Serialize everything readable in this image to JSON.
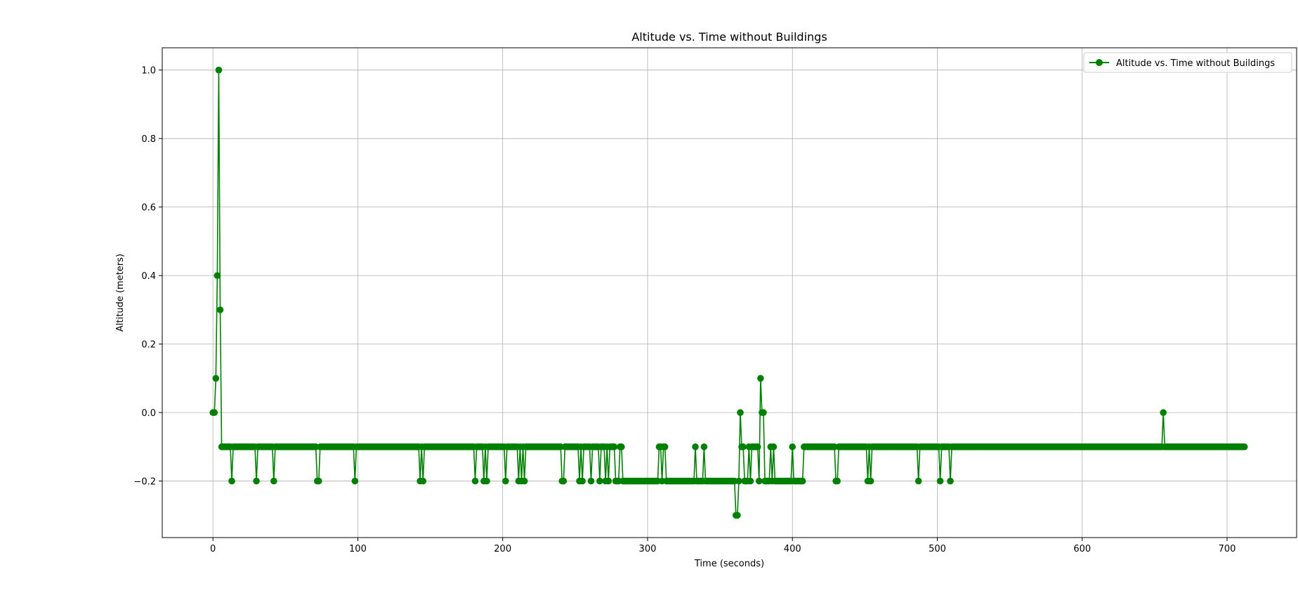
{
  "chart_data": {
    "type": "line",
    "title": "Altitude vs. Time without Buildings",
    "xlabel": "Time (seconds)",
    "ylabel": "Altitude (meters)",
    "xlim": [
      -35,
      748
    ],
    "ylim": [
      -0.365,
      1.065
    ],
    "xticks": [
      0,
      100,
      200,
      300,
      400,
      500,
      600,
      700
    ],
    "yticks": [
      -0.2,
      0.0,
      0.2,
      0.4,
      0.6,
      0.8,
      1.0
    ],
    "xtick_labels": [
      "0",
      "100",
      "200",
      "300",
      "400",
      "500",
      "600",
      "700"
    ],
    "ytick_labels": [
      "−0.2",
      "0.0",
      "0.2",
      "0.4",
      "0.6",
      "0.8",
      "1.0"
    ],
    "grid": true,
    "legend_position": "upper right",
    "series": [
      {
        "name": "Altitude vs. Time without Buildings",
        "color": "#008000",
        "marker": "circle",
        "x_start": 0,
        "x_step": 1,
        "overrides": [
          [
            0,
            0.0
          ],
          [
            1,
            0.0
          ],
          [
            2,
            0.1
          ],
          [
            3,
            0.4
          ],
          [
            4,
            1.0
          ],
          [
            5,
            0.3
          ],
          [
            13,
            -0.2
          ],
          [
            30,
            -0.2
          ],
          [
            42,
            -0.2
          ],
          [
            72,
            -0.2
          ],
          [
            73,
            -0.2
          ],
          [
            98,
            -0.2
          ],
          [
            143,
            -0.2
          ],
          [
            145,
            -0.2
          ],
          [
            181,
            -0.2
          ],
          [
            187,
            -0.2
          ],
          [
            189,
            -0.2
          ],
          [
            202,
            -0.2
          ],
          [
            211,
            -0.2
          ],
          [
            213,
            -0.2
          ],
          [
            215,
            -0.2
          ],
          [
            241,
            -0.2
          ],
          [
            242,
            -0.2
          ],
          [
            253,
            -0.2
          ],
          [
            255,
            -0.2
          ],
          [
            261,
            -0.2
          ],
          [
            267,
            -0.2
          ],
          [
            271,
            -0.2
          ],
          [
            273,
            -0.2
          ],
          [
            278,
            -0.2
          ],
          [
            279,
            -0.2
          ],
          [
            280,
            -0.2
          ],
          [
            283,
            -0.2
          ],
          [
            284,
            -0.2
          ],
          [
            285,
            -0.2
          ],
          [
            286,
            -0.2
          ],
          [
            287,
            -0.2
          ],
          [
            288,
            -0.2
          ],
          [
            289,
            -0.2
          ],
          [
            290,
            -0.2
          ],
          [
            291,
            -0.2
          ],
          [
            292,
            -0.2
          ],
          [
            293,
            -0.2
          ],
          [
            294,
            -0.2
          ],
          [
            295,
            -0.2
          ],
          [
            296,
            -0.2
          ],
          [
            297,
            -0.2
          ],
          [
            298,
            -0.2
          ],
          [
            299,
            -0.2
          ],
          [
            300,
            -0.2
          ],
          [
            301,
            -0.2
          ],
          [
            302,
            -0.2
          ],
          [
            303,
            -0.2
          ],
          [
            304,
            -0.2
          ],
          [
            305,
            -0.2
          ],
          [
            306,
            -0.2
          ],
          [
            307,
            -0.2
          ],
          [
            310,
            -0.2
          ],
          [
            313,
            -0.2
          ],
          [
            314,
            -0.2
          ],
          [
            315,
            -0.2
          ],
          [
            316,
            -0.2
          ],
          [
            317,
            -0.2
          ],
          [
            318,
            -0.2
          ],
          [
            319,
            -0.2
          ],
          [
            320,
            -0.2
          ],
          [
            321,
            -0.2
          ],
          [
            322,
            -0.2
          ],
          [
            323,
            -0.2
          ],
          [
            324,
            -0.2
          ],
          [
            325,
            -0.2
          ],
          [
            326,
            -0.2
          ],
          [
            327,
            -0.2
          ],
          [
            328,
            -0.2
          ],
          [
            329,
            -0.2
          ],
          [
            330,
            -0.2
          ],
          [
            331,
            -0.2
          ],
          [
            332,
            -0.2
          ],
          [
            334,
            -0.2
          ],
          [
            335,
            -0.2
          ],
          [
            336,
            -0.2
          ],
          [
            337,
            -0.2
          ],
          [
            338,
            -0.2
          ],
          [
            340,
            -0.2
          ],
          [
            341,
            -0.2
          ],
          [
            342,
            -0.2
          ],
          [
            343,
            -0.2
          ],
          [
            344,
            -0.2
          ],
          [
            345,
            -0.2
          ],
          [
            346,
            -0.2
          ],
          [
            347,
            -0.2
          ],
          [
            348,
            -0.2
          ],
          [
            349,
            -0.2
          ],
          [
            350,
            -0.2
          ],
          [
            351,
            -0.2
          ],
          [
            352,
            -0.2
          ],
          [
            353,
            -0.2
          ],
          [
            354,
            -0.2
          ],
          [
            355,
            -0.2
          ],
          [
            356,
            -0.2
          ],
          [
            357,
            -0.2
          ],
          [
            358,
            -0.2
          ],
          [
            359,
            -0.2
          ],
          [
            360,
            -0.2
          ],
          [
            361,
            -0.3
          ],
          [
            362,
            -0.3
          ],
          [
            363,
            -0.2
          ],
          [
            364,
            0.0
          ],
          [
            367,
            -0.2
          ],
          [
            368,
            -0.2
          ],
          [
            369,
            -0.2
          ],
          [
            371,
            -0.2
          ],
          [
            377,
            -0.2
          ],
          [
            378,
            0.1
          ],
          [
            379,
            0.0
          ],
          [
            380,
            0.0
          ],
          [
            381,
            -0.2
          ],
          [
            382,
            -0.2
          ],
          [
            383,
            -0.2
          ],
          [
            384,
            -0.2
          ],
          [
            386,
            -0.2
          ],
          [
            388,
            -0.2
          ],
          [
            389,
            -0.2
          ],
          [
            390,
            -0.2
          ],
          [
            391,
            -0.2
          ],
          [
            392,
            -0.2
          ],
          [
            393,
            -0.2
          ],
          [
            394,
            -0.2
          ],
          [
            395,
            -0.2
          ],
          [
            396,
            -0.2
          ],
          [
            397,
            -0.2
          ],
          [
            398,
            -0.2
          ],
          [
            399,
            -0.2
          ],
          [
            401,
            -0.2
          ],
          [
            402,
            -0.2
          ],
          [
            403,
            -0.2
          ],
          [
            404,
            -0.2
          ],
          [
            405,
            -0.2
          ],
          [
            406,
            -0.2
          ],
          [
            407,
            -0.2
          ],
          [
            430,
            -0.2
          ],
          [
            431,
            -0.2
          ],
          [
            452,
            -0.2
          ],
          [
            454,
            -0.2
          ],
          [
            487,
            -0.2
          ],
          [
            502,
            -0.2
          ],
          [
            509,
            -0.2
          ],
          [
            656,
            0.0
          ]
        ],
        "default_y": -0.1,
        "x_end": 712
      }
    ]
  }
}
